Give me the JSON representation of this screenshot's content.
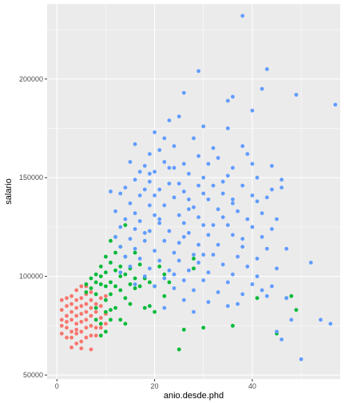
{
  "chart_data": {
    "type": "scatter",
    "title": "",
    "xlabel": "anio.desde.phd",
    "ylabel": "salario",
    "xlim": [
      -2,
      58
    ],
    "ylim": [
      48000,
      238000
    ],
    "x_ticks": [
      0,
      20,
      40
    ],
    "y_ticks": [
      50000,
      100000,
      150000,
      200000
    ],
    "x_tick_labels": [
      "0",
      "20",
      "40"
    ],
    "y_tick_labels": [
      "50000",
      "100000",
      "150000",
      "200000"
    ],
    "grid": true,
    "legend": "none",
    "panel_color": "#ebebeb",
    "grid_color": "#ffffff",
    "series": [
      {
        "color": "#f8766d",
        "points": [
          [
            1,
            88000
          ],
          [
            1,
            83000
          ],
          [
            1,
            78000
          ],
          [
            1,
            71000
          ],
          [
            2,
            89000
          ],
          [
            2,
            85000
          ],
          [
            2,
            80000
          ],
          [
            2,
            74000
          ],
          [
            2,
            69000
          ],
          [
            3,
            90000
          ],
          [
            3,
            86000
          ],
          [
            3,
            82000
          ],
          [
            3,
            78000
          ],
          [
            3,
            72000
          ],
          [
            3,
            64000
          ],
          [
            4,
            93000
          ],
          [
            4,
            88000
          ],
          [
            4,
            84000
          ],
          [
            4,
            80000
          ],
          [
            4,
            76000
          ],
          [
            4,
            71000
          ],
          [
            4,
            66000
          ],
          [
            5,
            95000
          ],
          [
            5,
            89000
          ],
          [
            5,
            85000
          ],
          [
            5,
            81000
          ],
          [
            5,
            77000
          ],
          [
            5,
            72000
          ],
          [
            5,
            67000
          ],
          [
            6,
            91000
          ],
          [
            6,
            86000
          ],
          [
            6,
            82000
          ],
          [
            6,
            78000
          ],
          [
            6,
            74000
          ],
          [
            6,
            69000
          ],
          [
            7,
            88000
          ],
          [
            7,
            84000
          ],
          [
            7,
            80000
          ],
          [
            7,
            75000
          ],
          [
            7,
            70000
          ],
          [
            7,
            63000
          ],
          [
            8,
            86000
          ],
          [
            8,
            82000
          ],
          [
            8,
            78000
          ],
          [
            8,
            74000
          ],
          [
            8,
            70000
          ],
          [
            9,
            85000
          ],
          [
            9,
            79000
          ],
          [
            9,
            74000
          ],
          [
            10,
            90000
          ],
          [
            10,
            81000
          ],
          [
            10,
            76000
          ],
          [
            1,
            75000
          ],
          [
            3,
            69000
          ],
          [
            5,
            63500
          ],
          [
            6,
            95000
          ],
          [
            2,
            77000
          ],
          [
            4,
            73000
          ],
          [
            7,
            92000
          ],
          [
            9,
            89000
          ]
        ]
      },
      {
        "color": "#00ba38",
        "points": [
          [
            6,
            96000
          ],
          [
            6,
            92000
          ],
          [
            7,
            99000
          ],
          [
            7,
            94000
          ],
          [
            8,
            101000
          ],
          [
            8,
            97000
          ],
          [
            8,
            91000
          ],
          [
            8,
            84000
          ],
          [
            8,
            78000
          ],
          [
            9,
            105000
          ],
          [
            9,
            100000
          ],
          [
            9,
            96000
          ],
          [
            9,
            76000
          ],
          [
            10,
            110000
          ],
          [
            10,
            102000
          ],
          [
            10,
            95000
          ],
          [
            10,
            88000
          ],
          [
            10,
            82000
          ],
          [
            10,
            72000
          ],
          [
            11,
            118000
          ],
          [
            11,
            107000
          ],
          [
            11,
            97000
          ],
          [
            11,
            83000
          ],
          [
            11,
            78000
          ],
          [
            12,
            120000
          ],
          [
            12,
            112000
          ],
          [
            12,
            103000
          ],
          [
            12,
            95000
          ],
          [
            12,
            84000
          ],
          [
            13,
            115000
          ],
          [
            13,
            105000
          ],
          [
            13,
            100000
          ],
          [
            13,
            93000
          ],
          [
            13,
            78000
          ],
          [
            14,
            126000
          ],
          [
            14,
            110000
          ],
          [
            14,
            101000
          ],
          [
            14,
            89000
          ],
          [
            15,
            104000
          ],
          [
            15,
            96000
          ],
          [
            15,
            86000
          ],
          [
            16,
            112000
          ],
          [
            16,
            99000
          ],
          [
            16,
            94000
          ],
          [
            17,
            106000
          ],
          [
            17,
            95000
          ],
          [
            18,
            99000
          ],
          [
            18,
            84000
          ],
          [
            19,
            97000
          ],
          [
            19,
            85000
          ],
          [
            20,
            95000
          ],
          [
            20,
            82000
          ],
          [
            21,
            105000
          ],
          [
            22,
            101000
          ],
          [
            22,
            90000
          ],
          [
            23,
            97000
          ],
          [
            25,
            63000
          ],
          [
            26,
            73000
          ],
          [
            28,
            109000
          ],
          [
            28,
            104000
          ],
          [
            30,
            74000
          ],
          [
            41,
            89000
          ],
          [
            45,
            71000
          ],
          [
            47,
            89000
          ],
          [
            48,
            90000
          ],
          [
            49,
            83000
          ],
          [
            36,
            75000
          ],
          [
            11,
            91000
          ],
          [
            14,
            76000
          ],
          [
            9,
            70000
          ]
        ]
      },
      {
        "color": "#619cff",
        "points": [
          [
            38,
            232000
          ],
          [
            43,
            205000
          ],
          [
            29,
            204000
          ],
          [
            42,
            195000
          ],
          [
            49,
            192000
          ],
          [
            26,
            193000
          ],
          [
            57,
            187000
          ],
          [
            35,
            189000
          ],
          [
            36,
            191000
          ],
          [
            40,
            184000
          ],
          [
            25,
            181000
          ],
          [
            23,
            179000
          ],
          [
            30,
            176000
          ],
          [
            35,
            175000
          ],
          [
            20,
            173000
          ],
          [
            22,
            170000
          ],
          [
            28,
            170000
          ],
          [
            16,
            167000
          ],
          [
            24,
            166000
          ],
          [
            38,
            166000
          ],
          [
            21,
            164000
          ],
          [
            32,
            165000
          ],
          [
            39,
            162000
          ],
          [
            19,
            162000
          ],
          [
            29,
            161000
          ],
          [
            33,
            160000
          ],
          [
            22,
            158000
          ],
          [
            26,
            157000
          ],
          [
            15,
            158000
          ],
          [
            31,
            157000
          ],
          [
            18,
            156000
          ],
          [
            24,
            155000
          ],
          [
            36,
            155000
          ],
          [
            44,
            156000
          ],
          [
            17,
            153000
          ],
          [
            20,
            153000
          ],
          [
            27,
            152000
          ],
          [
            30,
            150000
          ],
          [
            35,
            151000
          ],
          [
            41,
            150000
          ],
          [
            46,
            149000
          ],
          [
            16,
            149000
          ],
          [
            19,
            148000
          ],
          [
            23,
            147000
          ],
          [
            25,
            147000
          ],
          [
            29,
            146000
          ],
          [
            32,
            146000
          ],
          [
            38,
            146000
          ],
          [
            44,
            144000
          ],
          [
            46,
            145000
          ],
          [
            14,
            145000
          ],
          [
            18,
            144000
          ],
          [
            21,
            144000
          ],
          [
            26,
            143000
          ],
          [
            30,
            142000
          ],
          [
            34,
            142000
          ],
          [
            40,
            141000
          ],
          [
            43,
            140000
          ],
          [
            11,
            143000
          ],
          [
            13,
            142000
          ],
          [
            17,
            141000
          ],
          [
            20,
            141000
          ],
          [
            24,
            140000
          ],
          [
            27,
            139000
          ],
          [
            31,
            139000
          ],
          [
            36,
            139000
          ],
          [
            41,
            138000
          ],
          [
            15,
            137000
          ],
          [
            19,
            136000
          ],
          [
            22,
            136000
          ],
          [
            28,
            135000
          ],
          [
            33,
            134000
          ],
          [
            37,
            133000
          ],
          [
            42,
            132000
          ],
          [
            12,
            133000
          ],
          [
            16,
            132000
          ],
          [
            20,
            131000
          ],
          [
            25,
            131000
          ],
          [
            29,
            130000
          ],
          [
            34,
            130000
          ],
          [
            39,
            129000
          ],
          [
            45,
            129000
          ],
          [
            14,
            129000
          ],
          [
            17,
            128000
          ],
          [
            21,
            127000
          ],
          [
            26,
            127000
          ],
          [
            30,
            126000
          ],
          [
            35,
            126000
          ],
          [
            40,
            125000
          ],
          [
            13,
            125000
          ],
          [
            16,
            124000
          ],
          [
            19,
            123000
          ],
          [
            23,
            123000
          ],
          [
            27,
            122000
          ],
          [
            31,
            121000
          ],
          [
            36,
            121000
          ],
          [
            42,
            120000
          ],
          [
            12,
            120000
          ],
          [
            15,
            119000
          ],
          [
            18,
            118000
          ],
          [
            22,
            118000
          ],
          [
            25,
            117000
          ],
          [
            29,
            116000
          ],
          [
            33,
            116000
          ],
          [
            38,
            115000
          ],
          [
            43,
            114000
          ],
          [
            47,
            114000
          ],
          [
            13,
            115000
          ],
          [
            16,
            114000
          ],
          [
            20,
            113000
          ],
          [
            24,
            112000
          ],
          [
            28,
            111000
          ],
          [
            32,
            111000
          ],
          [
            37,
            110000
          ],
          [
            41,
            109000
          ],
          [
            14,
            110000
          ],
          [
            17,
            109000
          ],
          [
            21,
            108000
          ],
          [
            25,
            108000
          ],
          [
            29,
            107000
          ],
          [
            34,
            106000
          ],
          [
            39,
            105000
          ],
          [
            45,
            104000
          ],
          [
            52,
            107000
          ],
          [
            15,
            105000
          ],
          [
            19,
            104000
          ],
          [
            23,
            103000
          ],
          [
            27,
            103000
          ],
          [
            31,
            102000
          ],
          [
            36,
            101000
          ],
          [
            41,
            100000
          ],
          [
            13,
            102000
          ],
          [
            18,
            100000
          ],
          [
            22,
            99000
          ],
          [
            26,
            98000
          ],
          [
            30,
            98000
          ],
          [
            35,
            97000
          ],
          [
            40,
            96000
          ],
          [
            44,
            95000
          ],
          [
            16,
            96000
          ],
          [
            20,
            95000
          ],
          [
            24,
            94000
          ],
          [
            28,
            93000
          ],
          [
            33,
            92000
          ],
          [
            38,
            91000
          ],
          [
            43,
            90000
          ],
          [
            47,
            89000
          ],
          [
            26,
            88000
          ],
          [
            31,
            87000
          ],
          [
            37,
            86000
          ],
          [
            22,
            84000
          ],
          [
            28,
            82000
          ],
          [
            48,
            78000
          ],
          [
            54,
            78000
          ],
          [
            56,
            76000
          ],
          [
            45,
            72000
          ],
          [
            46,
            68000
          ],
          [
            50,
            58000
          ],
          [
            35,
            85000
          ],
          [
            42,
            93000
          ],
          [
            24,
            101000
          ],
          [
            30,
            111000
          ],
          [
            18,
            122000
          ],
          [
            21,
            129000
          ],
          [
            27,
            134000
          ],
          [
            32,
            126000
          ],
          [
            38,
            119000
          ],
          [
            44,
            124000
          ],
          [
            23,
            155000
          ],
          [
            19,
            152000
          ],
          [
            34,
            148000
          ],
          [
            40,
            157000
          ],
          [
            26,
            120000
          ],
          [
            36,
            137000
          ]
        ]
      }
    ]
  }
}
